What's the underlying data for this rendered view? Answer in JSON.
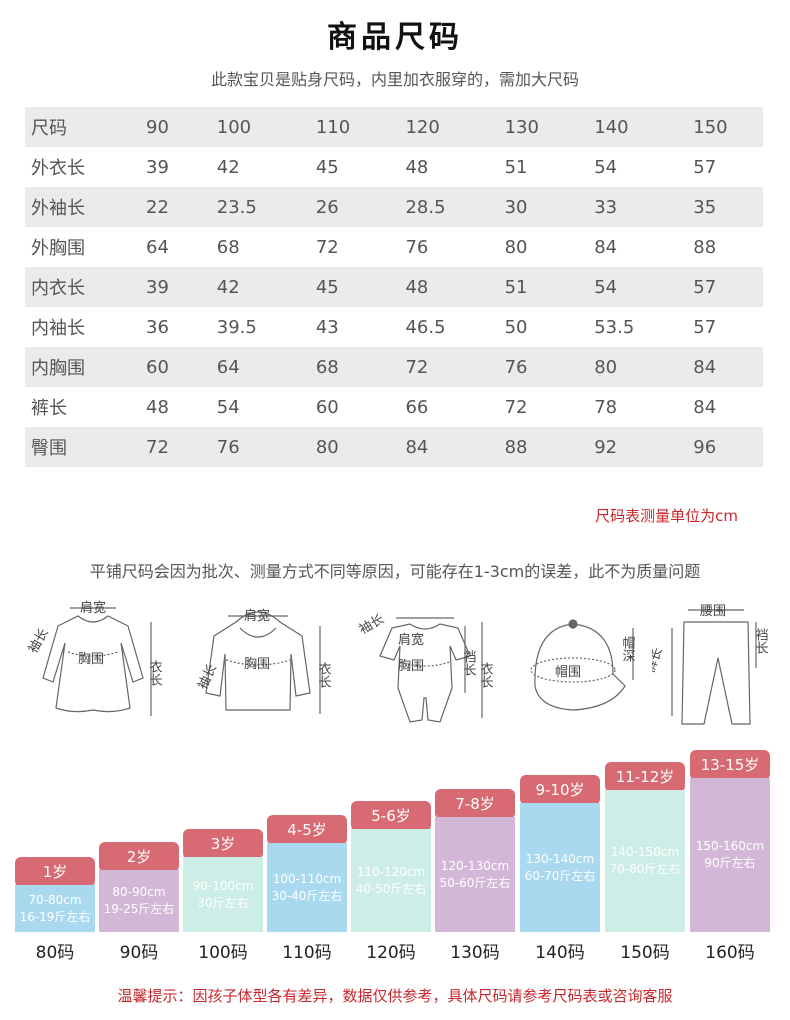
{
  "title": "商品尺码",
  "subtitle": "此款宝贝是贴身尺码，内里加衣服穿的，需加大尺码",
  "size_table": {
    "header": [
      "尺码",
      "90",
      "100",
      "110",
      "120",
      "130",
      "140",
      "150"
    ],
    "rows": [
      [
        "外衣长",
        "39",
        "42",
        "45",
        "48",
        "51",
        "54",
        "57"
      ],
      [
        "外袖长",
        "22",
        "23.5",
        "26",
        "28.5",
        "30",
        "33",
        "35"
      ],
      [
        "外胸围",
        "64",
        "68",
        "72",
        "76",
        "80",
        "84",
        "88"
      ],
      [
        "内衣长",
        "39",
        "42",
        "45",
        "48",
        "51",
        "54",
        "57"
      ],
      [
        "内袖长",
        "36",
        "39.5",
        "43",
        "46.5",
        "50",
        "53.5",
        "57"
      ],
      [
        "内胸围",
        "60",
        "64",
        "68",
        "72",
        "76",
        "80",
        "84"
      ],
      [
        "裤长",
        "48",
        "54",
        "60",
        "66",
        "72",
        "78",
        "84"
      ],
      [
        "臀围",
        "72",
        "76",
        "80",
        "84",
        "88",
        "92",
        "96"
      ]
    ]
  },
  "unit_note": "尺码表测量单位为cm",
  "measure_note": "平铺尺码会因为批次、测量方式不同等原因，可能存在1-3cm的误差，此不为质量问题",
  "diagrams": {
    "dress": {
      "shoulder": "肩宽",
      "sleeve": "袖长",
      "chest": "胸围",
      "length": "衣长"
    },
    "hoodie": {
      "shoulder": "肩宽",
      "sleeve": "袖长",
      "chest": "胸围",
      "length": "衣长"
    },
    "romper": {
      "sleeve": "袖长",
      "shoulder": "肩宽",
      "chest": "胸围",
      "crotch": "裆长",
      "length": "衣长"
    },
    "hat": {
      "circumference": "帽围",
      "depth": "帽深"
    },
    "pants": {
      "waist": "腰围",
      "length": "裤长",
      "crotch": "裆长"
    }
  },
  "size_chart": [
    {
      "age": "1岁",
      "height": "70-80cm",
      "weight": "16-19斤左右",
      "code": "80码",
      "color": "#a9d9ef"
    },
    {
      "age": "2岁",
      "height": "80-90cm",
      "weight": "19-25斤左右",
      "code": "90码",
      "color": "#d2b8d6"
    },
    {
      "age": "3岁",
      "height": "90-100cm",
      "weight": "30斤左右",
      "code": "100码",
      "color": "#cdeee6"
    },
    {
      "age": "4-5岁",
      "height": "100-110cm",
      "weight": "30-40斤左右",
      "code": "110码",
      "color": "#a9d9ef"
    },
    {
      "age": "5-6岁",
      "height": "110-120cm",
      "weight": "40-50斤左右",
      "code": "120码",
      "color": "#cdeee6"
    },
    {
      "age": "7-8岁",
      "height": "120-130cm",
      "weight": "50-60斤左右",
      "code": "130码",
      "color": "#d2b8d6"
    },
    {
      "age": "9-10岁",
      "height": "130-140cm",
      "weight": "60-70斤左右",
      "code": "140码",
      "color": "#a9d9ef"
    },
    {
      "age": "11-12岁",
      "height": "140-150cm",
      "weight": "70-80斤左右",
      "code": "150码",
      "color": "#cdeee6"
    },
    {
      "age": "13-15岁",
      "height": "150-160cm",
      "weight": "90斤左右",
      "code": "160码",
      "color": "#d2b8d6"
    }
  ],
  "tip": "温馨提示：因孩子体型各有差异，数据仅供参考，具体尺码请参考尺码表或咨询客服"
}
